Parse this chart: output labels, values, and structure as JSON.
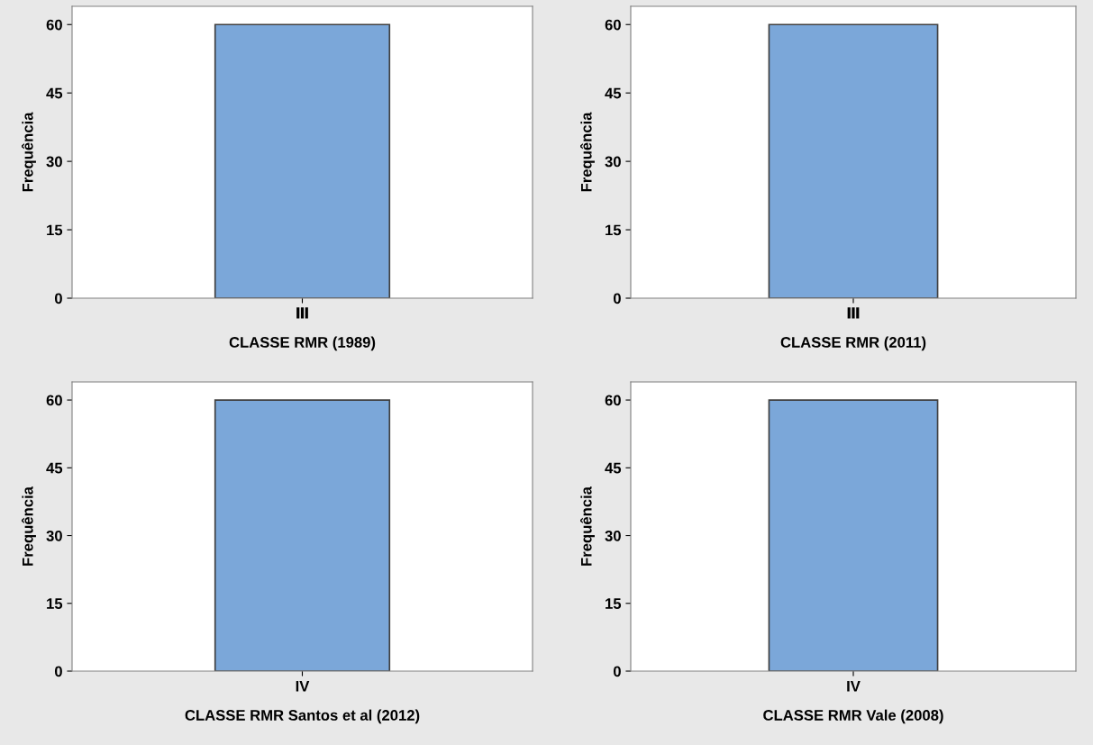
{
  "chart_data": [
    {
      "type": "bar",
      "categories": [
        "Ⅲ"
      ],
      "values": [
        60
      ],
      "color": "#7ba7d9",
      "xlabel": "CLASSE RMR (1989)",
      "ylabel": "Frequência",
      "ylim": [
        0,
        64
      ],
      "yticks": [
        0,
        15,
        30,
        45,
        60
      ],
      "grid": false
    },
    {
      "type": "bar",
      "categories": [
        "Ⅲ"
      ],
      "values": [
        60
      ],
      "color": "#7ba7d9",
      "xlabel": "CLASSE RMR (2011)",
      "ylabel": "Frequência",
      "ylim": [
        0,
        64
      ],
      "yticks": [
        0,
        15,
        30,
        45,
        60
      ],
      "grid": false
    },
    {
      "type": "bar",
      "categories": [
        "IV"
      ],
      "values": [
        60
      ],
      "color": "#7ba7d9",
      "xlabel": "CLASSE RMR Santos et al (2012)",
      "ylabel": "Frequência",
      "ylim": [
        0,
        64
      ],
      "yticks": [
        0,
        15,
        30,
        45,
        60
      ],
      "grid": false
    },
    {
      "type": "bar",
      "categories": [
        "IV"
      ],
      "values": [
        60
      ],
      "color": "#7ba7d9",
      "xlabel": "CLASSE RMR Vale (2008)",
      "ylabel": "Frequência",
      "ylim": [
        0,
        64
      ],
      "yticks": [
        0,
        15,
        30,
        45,
        60
      ],
      "grid": false
    }
  ]
}
